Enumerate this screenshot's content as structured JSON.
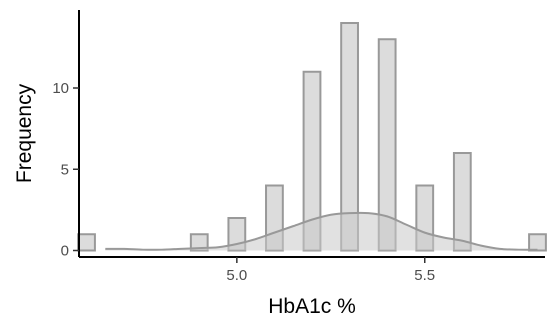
{
  "chart_data": {
    "type": "bar",
    "subtype": "histogram-with-density",
    "title": "",
    "xlabel": "HbA1c %",
    "ylabel": "Frequency",
    "xlim": [
      4.58,
      5.82
    ],
    "ylim": [
      -0.4,
      14.8
    ],
    "bin_width": 0.05,
    "bins": [
      {
        "center": 4.6,
        "count": 1
      },
      {
        "center": 4.9,
        "count": 1
      },
      {
        "center": 5.0,
        "count": 2
      },
      {
        "center": 5.1,
        "count": 4
      },
      {
        "center": 5.2,
        "count": 11
      },
      {
        "center": 5.3,
        "count": 14
      },
      {
        "center": 5.4,
        "count": 13
      },
      {
        "center": 5.5,
        "count": 4
      },
      {
        "center": 5.6,
        "count": 6
      },
      {
        "center": 5.8,
        "count": 1
      }
    ],
    "density": {
      "x": [
        4.65,
        4.7,
        4.75,
        4.8,
        4.85,
        4.9,
        4.95,
        5.0,
        5.05,
        5.1,
        5.15,
        5.2,
        5.25,
        5.3,
        5.35,
        5.4,
        5.45,
        5.5,
        5.55,
        5.6,
        5.65,
        5.7,
        5.75,
        5.8
      ],
      "y": [
        0.1,
        0.1,
        0.05,
        0.05,
        0.1,
        0.15,
        0.2,
        0.4,
        0.7,
        1.1,
        1.5,
        1.9,
        2.2,
        2.3,
        2.3,
        2.1,
        1.6,
        1.1,
        0.8,
        0.6,
        0.3,
        0.1,
        0.05,
        0.05
      ]
    },
    "x_ticks": [
      {
        "value": 5.0,
        "label": "5.0"
      },
      {
        "value": 5.5,
        "label": "5.5"
      }
    ],
    "y_ticks": [
      {
        "value": 0,
        "label": "0"
      },
      {
        "value": 5,
        "label": "5"
      },
      {
        "value": 10,
        "label": "10"
      }
    ],
    "grid": false,
    "legend": "none",
    "colors": {
      "bar_fill": "#dcdcdc",
      "bar_stroke": "#999999",
      "density_fill": "#c8c8c8",
      "density_line": "#999999",
      "axis": "#000000"
    }
  }
}
